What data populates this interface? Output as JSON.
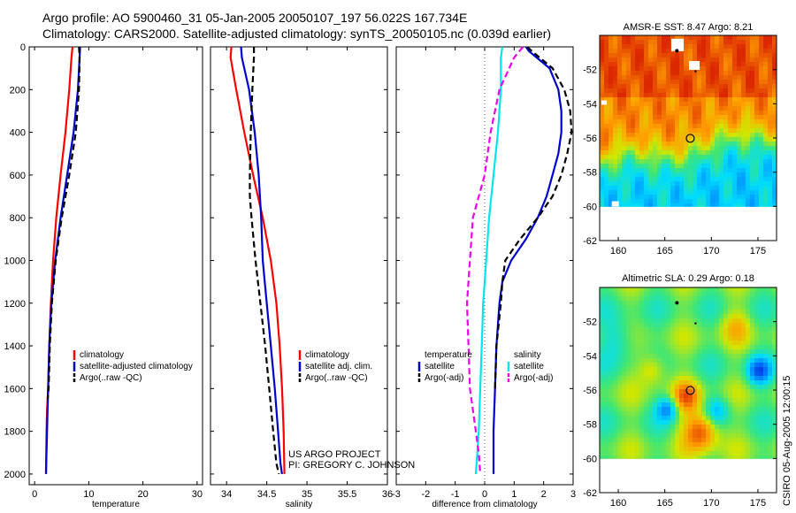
{
  "header": {
    "line1": "Argo profile: AO 5900460_31 05-Jan-2005 20050107_197 56.022S 167.734E",
    "line2": "Climatology: CARS2000. Satellite-adjusted climatology: synTS_20050105.nc (0.039d earlier)"
  },
  "credit": {
    "line1": "US ARGO PROJECT",
    "line2": "PI: GREGORY C. JOHNSON"
  },
  "stamp": "CSIRO 05-Aug-2005 12:00:15",
  "colors": {
    "climatology": "#ff0000",
    "satellite": "#0000cc",
    "argo": "#000000",
    "cyan": "#00e5ee",
    "magenta": "#ee00ee"
  },
  "chart_data": [
    {
      "type": "line",
      "xlabel": "temperature",
      "ylabel": "",
      "xlim": [
        -1,
        31
      ],
      "ylim": [
        2050,
        0
      ],
      "xticks": [
        "0",
        "10",
        "20",
        "30"
      ],
      "xtick_values": [
        0,
        10,
        20,
        30
      ],
      "yticks": [
        "0",
        "200",
        "400",
        "600",
        "800",
        "1000",
        "1200",
        "1400",
        "1600",
        "1800",
        "2000"
      ],
      "ytick_values": [
        0,
        200,
        400,
        600,
        800,
        1000,
        1200,
        1400,
        1600,
        1800,
        2000
      ],
      "legend": [
        "climatology",
        "satellite-adjusted climatology",
        "Argo(..raw -QC)"
      ],
      "series": [
        {
          "name": "climatology",
          "color": "#ff0000",
          "dash": "solid",
          "x": [
            7.0,
            6.8,
            6.4,
            5.7,
            4.8,
            4.0,
            3.4,
            3.0,
            2.7,
            2.5,
            2.3,
            2.2,
            2.15,
            2.1
          ],
          "y": [
            0,
            50,
            200,
            400,
            600,
            800,
            1000,
            1200,
            1400,
            1600,
            1700,
            1800,
            1900,
            2000
          ]
        },
        {
          "name": "satellite-adjusted climatology",
          "color": "#0000cc",
          "dash": "solid",
          "x": [
            8.4,
            8.3,
            8.0,
            7.2,
            6.0,
            4.8,
            3.8,
            3.1,
            2.7,
            2.5,
            2.3,
            2.2,
            2.1
          ],
          "y": [
            0,
            50,
            200,
            400,
            600,
            800,
            1000,
            1200,
            1400,
            1600,
            1800,
            1900,
            2000
          ]
        },
        {
          "name": "Argo(..raw -QC)",
          "color": "#000000",
          "dash": "dashed",
          "x": [
            8.2,
            8.3,
            8.2,
            7.6,
            6.4,
            5.0,
            3.9,
            3.2,
            2.8,
            2.6,
            2.4
          ],
          "y": [
            0,
            50,
            200,
            400,
            600,
            800,
            1000,
            1200,
            1400,
            1600,
            1650
          ]
        }
      ]
    },
    {
      "type": "line",
      "xlabel": "salinity",
      "ylabel": "",
      "xlim": [
        33.8,
        36.0
      ],
      "ylim": [
        2050,
        0
      ],
      "xticks": [
        "34",
        "34.5",
        "35",
        "35.5",
        "36"
      ],
      "xtick_values": [
        34,
        34.5,
        35,
        35.5,
        36
      ],
      "legend": [
        "climatology",
        "satellite adj. clim.",
        "Argo(..raw -QC)"
      ],
      "series": [
        {
          "name": "climatology",
          "color": "#ff0000",
          "dash": "solid",
          "x": [
            34.06,
            34.05,
            34.12,
            34.22,
            34.33,
            34.45,
            34.55,
            34.62,
            34.66,
            34.69,
            34.71,
            34.72
          ],
          "y": [
            0,
            50,
            200,
            400,
            600,
            800,
            1000,
            1200,
            1400,
            1600,
            1800,
            2000
          ]
        },
        {
          "name": "satellite adj. clim.",
          "color": "#0000cc",
          "dash": "solid",
          "x": [
            34.18,
            34.19,
            34.28,
            34.35,
            34.4,
            34.43,
            34.45,
            34.5,
            34.55,
            34.6,
            34.64,
            34.67,
            34.69
          ],
          "y": [
            0,
            50,
            200,
            400,
            600,
            800,
            1000,
            1200,
            1400,
            1600,
            1800,
            1950,
            2000
          ]
        },
        {
          "name": "Argo(..raw -QC)",
          "color": "#000000",
          "dash": "dashed",
          "x": [
            34.34,
            34.34,
            34.32,
            34.3,
            34.29,
            34.29,
            34.31,
            34.36,
            34.42,
            34.48,
            34.53,
            34.58,
            34.62,
            34.65
          ],
          "y": [
            0,
            50,
            200,
            400,
            600,
            700,
            800,
            1000,
            1200,
            1400,
            1600,
            1800,
            1950,
            2000
          ]
        }
      ]
    },
    {
      "type": "line",
      "xlabel": "difference from climatology",
      "ylabel": "",
      "xlim": [
        -3,
        3
      ],
      "ylim": [
        2050,
        0
      ],
      "xticks": [
        "-3",
        "-2",
        "-1",
        "0",
        "1",
        "2",
        "3"
      ],
      "xtick_values": [
        -3,
        -2,
        -1,
        0,
        1,
        2,
        3
      ],
      "legend_left_title": "temperature",
      "legend_right_title": "salinity",
      "legend": [
        "satellite",
        "Argo(-adj)",
        "satellite",
        "Argo(-adj)"
      ],
      "series": [
        {
          "name": "satellite",
          "group": "temperature",
          "color": "#0000cc",
          "dash": "solid",
          "x": [
            1.4,
            1.5,
            2.2,
            2.5,
            2.6,
            2.6,
            2.5,
            2.3,
            2.1,
            1.8,
            1.4,
            0.9,
            0.6,
            0.5,
            0.4,
            0.35,
            0.3,
            0.3
          ],
          "y": [
            0,
            20,
            100,
            200,
            300,
            400,
            500,
            600,
            700,
            800,
            900,
            1000,
            1100,
            1200,
            1400,
            1600,
            1800,
            2000
          ]
        },
        {
          "name": "Argo(-adj)",
          "group": "temperature",
          "color": "#000000",
          "dash": "dashed",
          "x": [
            1.45,
            1.6,
            2.3,
            2.7,
            2.9,
            2.95,
            2.8,
            2.6,
            2.3,
            1.8,
            1.2,
            0.7,
            0.6,
            0.55,
            0.4,
            0.35
          ],
          "y": [
            0,
            20,
            100,
            200,
            300,
            400,
            500,
            600,
            700,
            800,
            900,
            1000,
            1100,
            1200,
            1400,
            1600
          ]
        },
        {
          "name": "satellite",
          "group": "salinity",
          "color": "#00e5ee",
          "dash": "solid",
          "x": [
            0.6,
            0.55,
            0.55,
            0.45,
            0.3,
            0.15,
            0.05,
            -0.05,
            -0.1,
            -0.15,
            -0.2,
            -0.25,
            -0.3
          ],
          "y": [
            0,
            50,
            200,
            400,
            600,
            800,
            1000,
            1200,
            1400,
            1600,
            1800,
            1900,
            2000
          ]
        },
        {
          "name": "Argo(-adj)",
          "group": "salinity",
          "color": "#ee00ee",
          "dash": "dashed",
          "x": [
            1.3,
            1.0,
            0.5,
            0.2,
            0.0,
            -0.4,
            -0.5,
            -0.6,
            -0.55,
            -0.5,
            -0.4,
            -0.3,
            -0.2,
            -0.15
          ],
          "y": [
            0,
            50,
            200,
            400,
            600,
            800,
            1000,
            1200,
            1400,
            1600,
            1700,
            1800,
            1900,
            2000
          ]
        }
      ]
    },
    {
      "type": "heatmap",
      "title": "AMSR-E SST: 8.47 Argo: 8.21",
      "xlim": [
        158,
        177
      ],
      "ylim": [
        -62,
        -50
      ],
      "xticks": [
        "160",
        "165",
        "170",
        "175"
      ],
      "xtick_values": [
        160,
        165,
        170,
        175
      ],
      "yticks": [
        "-52",
        "-54",
        "-56",
        "-58",
        "-60",
        "-62"
      ],
      "ytick_values": [
        -52,
        -54,
        -56,
        -58,
        -60,
        -62
      ],
      "data_lat_range": [
        -60,
        -50
      ],
      "marker": {
        "lon": 167.734,
        "lat": -56.022
      }
    },
    {
      "type": "heatmap",
      "title": "Altimetric SLA: 0.29 Argo: 0.18",
      "xlim": [
        158,
        177
      ],
      "ylim": [
        -62,
        -50
      ],
      "xticks": [
        "160",
        "165",
        "170",
        "175"
      ],
      "xtick_values": [
        160,
        165,
        170,
        175
      ],
      "yticks": [
        "-52",
        "-54",
        "-56",
        "-58",
        "-60",
        "-62"
      ],
      "ytick_values": [
        -52,
        -54,
        -56,
        -58,
        -60,
        -62
      ],
      "data_lat_range": [
        -60,
        -50
      ],
      "marker": {
        "lon": 167.734,
        "lat": -56.022
      }
    }
  ]
}
